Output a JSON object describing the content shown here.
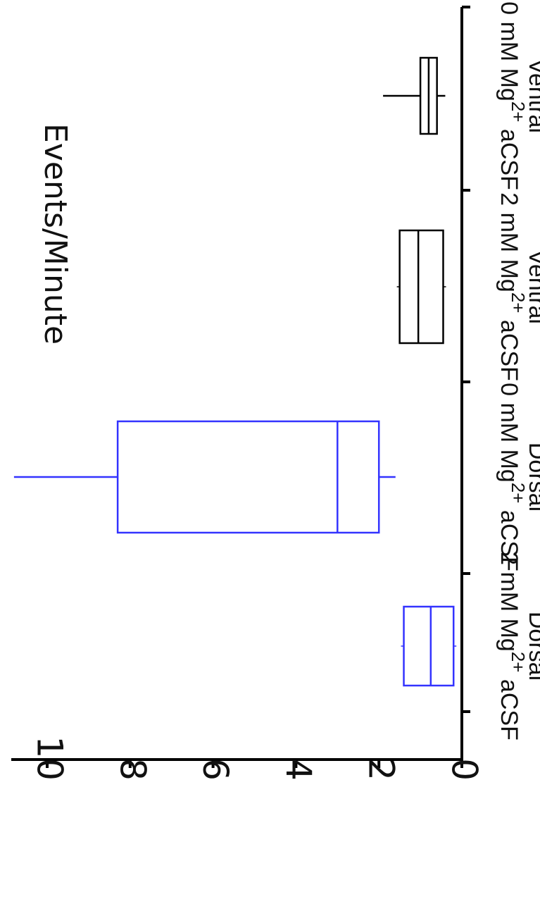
{
  "chart_data": {
    "type": "box",
    "orientation": "rotated",
    "ylabel": "Events/Minute",
    "ylim": [
      0,
      11
    ],
    "yticks": [
      0,
      2,
      4,
      6,
      8,
      10
    ],
    "grid": false,
    "categories": [
      {
        "line1_pre": "2 mM Mg",
        "sup": "2+",
        "line1_post": " aCSF",
        "line2": "Dorsal"
      },
      {
        "line1_pre": "0 mM Mg",
        "sup": "2+",
        "line1_post": " aCSF",
        "line2": "Dorsal"
      },
      {
        "line1_pre": "2 mM Mg",
        "sup": "2+",
        "line1_post": " aCSF",
        "line2": "Ventral"
      },
      {
        "line1_pre": "0 mM Mg",
        "sup": "2+",
        "line1_post": " aCSF",
        "line2": "Ventral"
      }
    ],
    "boxes": [
      {
        "min": 0.2,
        "q1": 0.2,
        "median": 0.75,
        "q3": 1.4,
        "max": 1.4,
        "color": "#3333ff"
      },
      {
        "min": 1.6,
        "q1": 2.0,
        "median": 3.0,
        "q3": 8.3,
        "max": 10.8,
        "color": "#3333ff"
      },
      {
        "min": 0.45,
        "q1": 0.45,
        "median": 1.05,
        "q3": 1.5,
        "max": 1.5,
        "color": "#000000"
      },
      {
        "min": 0.4,
        "q1": 0.6,
        "median": 0.8,
        "q3": 1.0,
        "max": 1.9,
        "color": "#000000"
      }
    ]
  }
}
